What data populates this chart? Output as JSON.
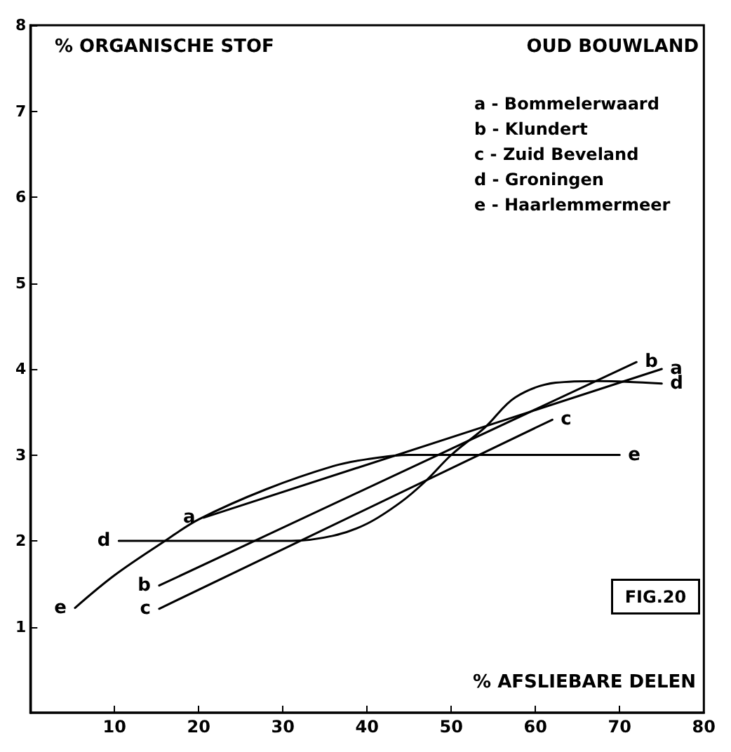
{
  "chart_data": {
    "type": "line",
    "title": "OUD BOUWLAND",
    "xlabel": "% AFSLIEBARE DELEN",
    "ylabel": "% ORGANISCHE STOF",
    "xlim": [
      0,
      80
    ],
    "xticks": [
      10,
      20,
      30,
      40,
      50,
      60,
      70,
      80
    ],
    "ylim": [
      0,
      8
    ],
    "yticks": [
      1,
      2,
      3,
      4,
      5,
      6,
      7,
      8
    ],
    "grid": false,
    "legend": false,
    "marker": "none",
    "line_style": "solid",
    "annotations": [
      "a - Bommelerwaard",
      "b - Klundert",
      "c - Zuid Beveland",
      "d - Groningen",
      "e - Haarlemmermeer",
      "FIG.20"
    ],
    "series": [
      {
        "name": "a",
        "color": "#000000",
        "x": [
          20.6,
          75
        ],
        "values": [
          2.27,
          4.0
        ]
      },
      {
        "name": "b",
        "color": "#000000",
        "x": [
          15.3,
          72
        ],
        "values": [
          1.48,
          4.08
        ]
      },
      {
        "name": "c",
        "color": "#000000",
        "x": [
          15.3,
          62
        ],
        "values": [
          1.21,
          3.41
        ]
      },
      {
        "name": "d",
        "color": "#000000",
        "x": [
          10.5,
          31,
          36,
          40,
          44,
          47,
          50,
          54,
          57.6,
          62.4,
          67.6,
          75
        ],
        "values": [
          2,
          2,
          2.06,
          2.2,
          2.45,
          2.7,
          3.0,
          3.32,
          3.67,
          3.84,
          3.86,
          3.83
        ]
      },
      {
        "name": "e",
        "color": "#000000",
        "x": [
          5.3,
          10,
          16,
          20,
          28,
          36,
          40,
          45,
          70
        ],
        "values": [
          1.22,
          1.6,
          2.0,
          2.25,
          2.6,
          2.87,
          2.95,
          3.0,
          3.0
        ]
      }
    ]
  }
}
